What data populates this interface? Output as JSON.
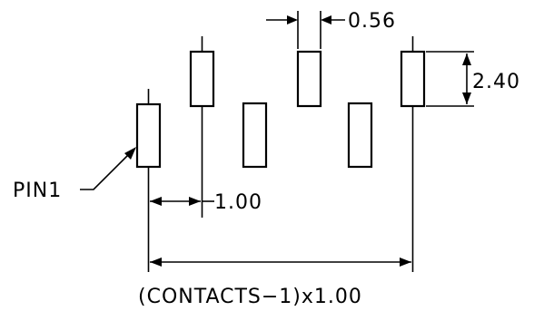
{
  "diagram": {
    "labels": {
      "pin_label": "PIN1",
      "pitch_dim": "1.00",
      "pad_width_dim": "0.56",
      "pad_height_dim": "2.40",
      "overall_dim": "(CONTACTS−1)x1.00"
    },
    "colors": {
      "stroke": "#000000",
      "background": "#ffffff"
    }
  }
}
